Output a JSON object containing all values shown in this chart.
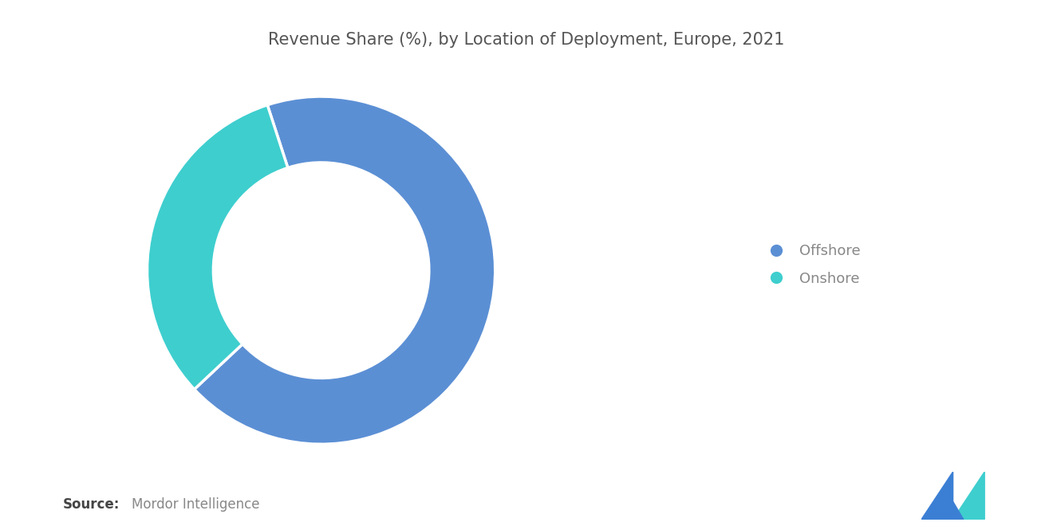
{
  "title": "Revenue Share (%), by Location of Deployment, Europe, 2021",
  "slices": [
    "Offshore",
    "Onshore"
  ],
  "values": [
    68,
    32
  ],
  "colors": [
    "#5B8FD4",
    "#3ECECE"
  ],
  "donut_width": 0.38,
  "legend_labels": [
    "Offshore",
    "Onshore"
  ],
  "source_bold": "Source:",
  "source_normal": "Mordor Intelligence",
  "title_fontsize": 15,
  "legend_fontsize": 13,
  "source_fontsize": 12,
  "background_color": "#ffffff",
  "text_color": "#888888",
  "title_color": "#555555",
  "start_angle": 108
}
